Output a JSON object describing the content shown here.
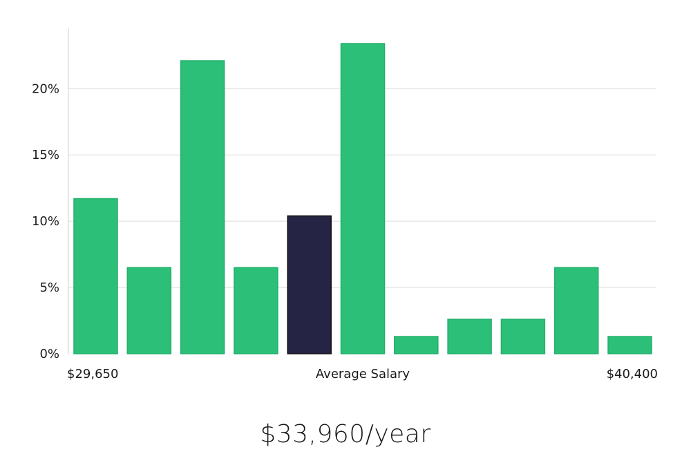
{
  "chart_data": {
    "type": "bar",
    "title": "",
    "xlabel": "Average Salary",
    "ylabel": "",
    "x_start_label": "$29,650",
    "x_end_label": "$40,400",
    "ylim": [
      0,
      24.6
    ],
    "yticks": [
      0,
      5,
      10,
      15,
      20
    ],
    "ytick_labels": [
      "0%",
      "5%",
      "10%",
      "15%",
      "20%"
    ],
    "values": [
      11.7,
      6.5,
      22.1,
      6.5,
      10.4,
      23.4,
      1.3,
      2.6,
      2.6,
      6.5,
      1.3
    ],
    "highlight_index": 4,
    "colors": {
      "bar": "#2bbf78",
      "bar_edge": "#22b06c",
      "highlight": "#262444",
      "highlight_edge": "#111111"
    }
  },
  "salary": {
    "caption": "$33,960/year"
  }
}
